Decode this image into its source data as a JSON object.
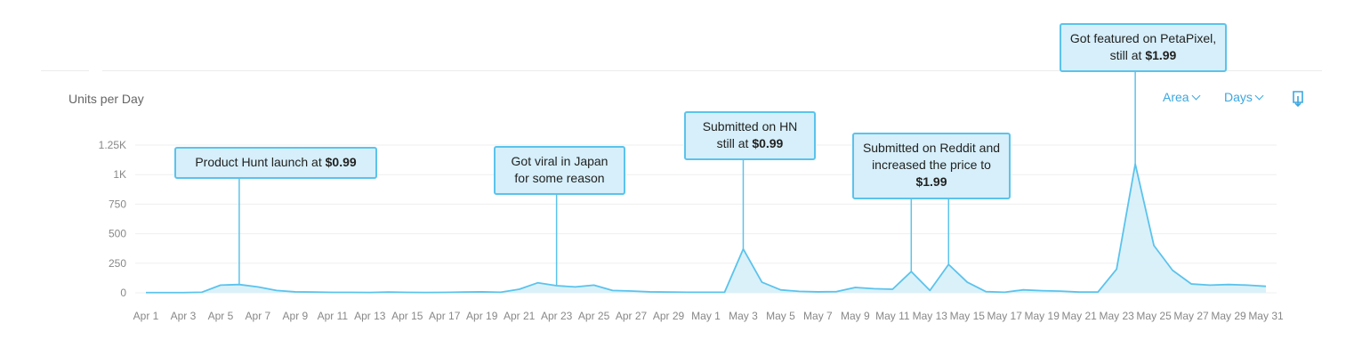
{
  "header": {
    "units_label": "Units per Day",
    "area_label": "Area",
    "days_label": "Days"
  },
  "icons": {
    "area_chevron": "chevron-down-icon",
    "days_chevron": "chevron-down-icon",
    "download": "download-icon"
  },
  "colors": {
    "accent": "#3ba7e0",
    "line": "#5bc3ec",
    "fill": "#d6effa",
    "grid": "#efefef",
    "tick_text": "#888888"
  },
  "chart_data": {
    "type": "area",
    "title": "",
    "xlabel": "",
    "ylabel": "Units per Day",
    "ylim": [
      0,
      1250
    ],
    "yticks": [
      {
        "value": 0,
        "label": "0"
      },
      {
        "value": 250,
        "label": "250"
      },
      {
        "value": 500,
        "label": "500"
      },
      {
        "value": 750,
        "label": "750"
      },
      {
        "value": 1000,
        "label": "1K"
      },
      {
        "value": 1250,
        "label": "1.25K"
      }
    ],
    "grid": true,
    "legend": "none",
    "x": [
      "Apr 1",
      "Apr 2",
      "Apr 3",
      "Apr 4",
      "Apr 5",
      "Apr 6",
      "Apr 7",
      "Apr 8",
      "Apr 9",
      "Apr 10",
      "Apr 11",
      "Apr 12",
      "Apr 13",
      "Apr 14",
      "Apr 15",
      "Apr 16",
      "Apr 17",
      "Apr 18",
      "Apr 19",
      "Apr 20",
      "Apr 21",
      "Apr 22",
      "Apr 23",
      "Apr 24",
      "Apr 25",
      "Apr 26",
      "Apr 27",
      "Apr 28",
      "Apr 29",
      "Apr 30",
      "May 1",
      "May 2",
      "May 3",
      "May 4",
      "May 5",
      "May 6",
      "May 7",
      "May 8",
      "May 9",
      "May 10",
      "May 11",
      "May 12",
      "May 13",
      "May 14",
      "May 15",
      "May 16",
      "May 17",
      "May 18",
      "May 19",
      "May 20",
      "May 21",
      "May 22",
      "May 23",
      "May 24",
      "May 25",
      "May 26",
      "May 27",
      "May 28",
      "May 29",
      "May 30",
      "May 31"
    ],
    "xtick_labels": [
      "Apr 1",
      "Apr 3",
      "Apr 5",
      "Apr 7",
      "Apr 9",
      "Apr 11",
      "Apr 13",
      "Apr 15",
      "Apr 17",
      "Apr 19",
      "Apr 21",
      "Apr 23",
      "Apr 25",
      "Apr 27",
      "Apr 29",
      "May 1",
      "May 3",
      "May 5",
      "May 7",
      "May 9",
      "May 11",
      "May 13",
      "May 15",
      "May 17",
      "May 19",
      "May 21",
      "May 23",
      "May 25",
      "May 27",
      "May 29",
      "May 31"
    ],
    "series": [
      {
        "values": [
          2,
          2,
          2,
          5,
          65,
          70,
          50,
          20,
          8,
          6,
          4,
          4,
          3,
          6,
          4,
          3,
          4,
          6,
          8,
          5,
          30,
          85,
          60,
          50,
          65,
          20,
          15,
          8,
          6,
          5,
          5,
          5,
          370,
          90,
          25,
          12,
          8,
          10,
          45,
          35,
          30,
          180,
          20,
          240,
          90,
          10,
          5,
          25,
          18,
          14,
          6,
          6,
          200,
          1090,
          400,
          190,
          75,
          65,
          70,
          65,
          55
        ]
      }
    ],
    "annotations": [
      {
        "x": "Apr 6",
        "value": 70,
        "text_before": "Product Hunt launch at ",
        "text_bold": "$0.99",
        "text_after": ""
      },
      {
        "x": "Apr 23",
        "value": 60,
        "text_before": "Got viral in Japan for some reason",
        "text_bold": "",
        "text_after": ""
      },
      {
        "x": "May 3",
        "value": 370,
        "text_before": "Submitted on HN still at ",
        "text_bold": "$0.99",
        "text_after": ""
      },
      {
        "x": "May 12",
        "value": 180,
        "text_before": "Submitted on Reddit and increased the price to ",
        "text_bold": "$1.99",
        "text_after": ""
      },
      {
        "x": "May 24",
        "value": 1090,
        "text_before": "Got featured on PetaPixel, still at ",
        "text_bold": "$1.99",
        "text_after": ""
      }
    ]
  }
}
